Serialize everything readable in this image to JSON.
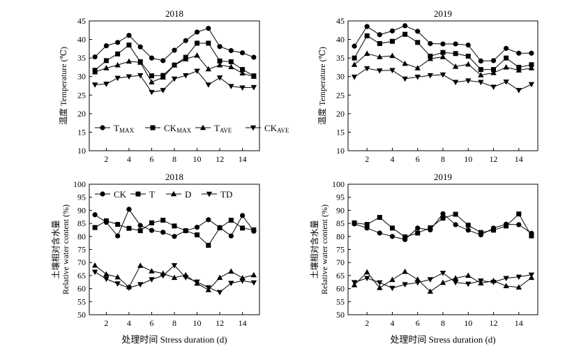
{
  "chart_data": [
    {
      "type": "line",
      "title": "2018",
      "ylabel": "温度 Temperature (℃)",
      "xlabel": "",
      "ylim": [
        10,
        45
      ],
      "yticks": [
        10,
        15,
        20,
        25,
        30,
        35,
        40,
        45
      ],
      "xlim": [
        0.5,
        15.5
      ],
      "xticks": [
        2,
        4,
        6,
        8,
        10,
        12,
        14
      ],
      "x": [
        1,
        2,
        3,
        4,
        5,
        6,
        7,
        8,
        9,
        10,
        11,
        12,
        13,
        14,
        15
      ],
      "legend": "inside-bottom",
      "series": [
        {
          "name": "T",
          "sub": "MAX",
          "marker": "circle",
          "values": [
            35.3,
            38.3,
            39.2,
            41.1,
            38.0,
            35.0,
            34.3,
            37.1,
            39.7,
            42.0,
            43.0,
            38.1,
            37.0,
            36.4,
            35.2
          ]
        },
        {
          "name": "CK",
          "sub": "MAX",
          "marker": "square",
          "values": [
            31.7,
            34.3,
            36.1,
            38.5,
            34.0,
            30.2,
            30.3,
            33.1,
            35.2,
            39.0,
            39.0,
            34.2,
            34.0,
            31.9,
            30.2
          ]
        },
        {
          "name": "T",
          "sub": "AVE",
          "marker": "triangle-up",
          "values": [
            31.2,
            32.3,
            33.1,
            34.1,
            33.8,
            28.5,
            29.8,
            33.1,
            34.7,
            35.7,
            32.0,
            33.1,
            32.6,
            30.9,
            30.0
          ]
        },
        {
          "name": "CK",
          "sub": "AVE",
          "marker": "triangle-down",
          "values": [
            27.8,
            28.0,
            29.6,
            30.0,
            30.3,
            25.8,
            26.3,
            29.4,
            30.3,
            31.5,
            27.8,
            29.7,
            27.4,
            27.0,
            27.1
          ]
        }
      ]
    },
    {
      "type": "line",
      "title": "2019",
      "ylabel": "温度 Temperature (℃)",
      "xlabel": "",
      "ylim": [
        10,
        45
      ],
      "yticks": [
        10,
        15,
        20,
        25,
        30,
        35,
        40,
        45
      ],
      "xlim": [
        0.5,
        15.5
      ],
      "xticks": [
        2,
        4,
        6,
        8,
        10,
        12,
        14
      ],
      "x": [
        1,
        2,
        3,
        4,
        5,
        6,
        7,
        8,
        9,
        10,
        11,
        12,
        13,
        14,
        15
      ],
      "series": [
        {
          "name": "T",
          "sub": "MAX",
          "marker": "circle",
          "values": [
            38.2,
            43.5,
            41.3,
            42.3,
            43.7,
            42.2,
            38.9,
            38.8,
            38.8,
            38.5,
            34.2,
            34.3,
            37.6,
            36.3,
            36.3
          ]
        },
        {
          "name": "CK",
          "sub": "MAX",
          "marker": "square",
          "values": [
            35.0,
            41.0,
            38.9,
            39.5,
            41.4,
            39.2,
            35.5,
            36.5,
            36.2,
            35.5,
            31.9,
            31.9,
            35.0,
            32.5,
            33.2
          ]
        },
        {
          "name": "T",
          "sub": "AVE",
          "marker": "triangle-up",
          "values": [
            33.2,
            36.2,
            35.3,
            35.6,
            33.5,
            32.3,
            34.8,
            35.3,
            32.7,
            33.3,
            30.4,
            31.0,
            32.5,
            31.7,
            32.3
          ]
        },
        {
          "name": "CK",
          "sub": "AVE",
          "marker": "triangle-down",
          "values": [
            29.9,
            32.2,
            31.6,
            31.7,
            29.4,
            29.9,
            30.3,
            30.5,
            28.5,
            28.9,
            28.5,
            27.2,
            28.6,
            26.3,
            27.9
          ]
        }
      ]
    },
    {
      "type": "line",
      "title": "2018",
      "ylabel": "土壤相对含水量",
      "ylabel2": "Relative water content (%)",
      "xlabel": "处理时间 Stress duration (d)",
      "ylim": [
        50,
        100
      ],
      "yticks": [
        50,
        55,
        60,
        65,
        70,
        75,
        80,
        85,
        90,
        95,
        100
      ],
      "xlim": [
        0.5,
        15.5
      ],
      "xticks": [
        2,
        4,
        6,
        8,
        10,
        12,
        14
      ],
      "x": [
        1,
        2,
        3,
        4,
        5,
        6,
        7,
        8,
        9,
        10,
        11,
        12,
        13,
        14,
        15
      ],
      "legend": "inside-top",
      "series": [
        {
          "name": "CK",
          "marker": "circle",
          "values": [
            88.3,
            85.4,
            80.2,
            90.4,
            84.2,
            82.3,
            81.6,
            80.0,
            82.2,
            83.5,
            86.4,
            83.4,
            80.2,
            88.0,
            82.0
          ]
        },
        {
          "name": "T",
          "marker": "square",
          "values": [
            83.4,
            86.0,
            84.6,
            83.1,
            82.2,
            85.2,
            86.2,
            84.0,
            82.2,
            80.6,
            76.6,
            83.3,
            86.2,
            83.2,
            82.5
          ]
        },
        {
          "name": "D",
          "marker": "triangle-up",
          "values": [
            68.9,
            65.5,
            64.4,
            60.6,
            68.8,
            66.7,
            65.8,
            64.2,
            65.2,
            62.0,
            59.5,
            64.2,
            66.6,
            64.1,
            65.2
          ]
        },
        {
          "name": "TD",
          "marker": "triangle-down",
          "values": [
            66.4,
            63.7,
            61.9,
            60.3,
            61.6,
            63.5,
            65.0,
            68.9,
            64.3,
            62.6,
            60.4,
            58.6,
            62.1,
            63.0,
            62.3
          ]
        }
      ]
    },
    {
      "type": "line",
      "title": "2019",
      "ylabel": "土壤相对含水量",
      "ylabel2": "Relative water content (%)",
      "xlabel": "处理时间 Stress duration (d)",
      "ylim": [
        50,
        100
      ],
      "yticks": [
        50,
        55,
        60,
        65,
        70,
        75,
        80,
        85,
        90,
        95,
        100
      ],
      "xlim": [
        0.5,
        15.5
      ],
      "xticks": [
        2,
        4,
        6,
        8,
        10,
        12,
        14
      ],
      "x": [
        1,
        2,
        3,
        4,
        5,
        6,
        7,
        8,
        9,
        10,
        11,
        12,
        13,
        14,
        15
      ],
      "series": [
        {
          "name": "CK",
          "marker": "circle",
          "values": [
            84.8,
            83.2,
            81.3,
            80.0,
            78.8,
            83.2,
            82.5,
            88.7,
            84.5,
            82.4,
            80.6,
            83.2,
            84.7,
            84.5,
            81.2
          ]
        },
        {
          "name": "T",
          "marker": "square",
          "values": [
            85.2,
            84.6,
            87.3,
            83.2,
            79.8,
            81.3,
            83.3,
            87.0,
            88.5,
            84.3,
            81.5,
            82.4,
            84.0,
            88.6,
            80.2
          ]
        },
        {
          "name": "D",
          "marker": "triangle-up",
          "values": [
            61.4,
            66.3,
            60.3,
            63.4,
            66.5,
            63.5,
            58.9,
            62.3,
            64.0,
            65.0,
            62.1,
            63.0,
            61.0,
            60.5,
            64.2
          ]
        },
        {
          "name": "TD",
          "marker": "triangle-down",
          "values": [
            62.4,
            64.0,
            62.3,
            60.2,
            61.6,
            62.3,
            63.5,
            66.0,
            62.4,
            61.8,
            63.0,
            62.5,
            64.0,
            64.5,
            65.3
          ]
        }
      ]
    }
  ]
}
